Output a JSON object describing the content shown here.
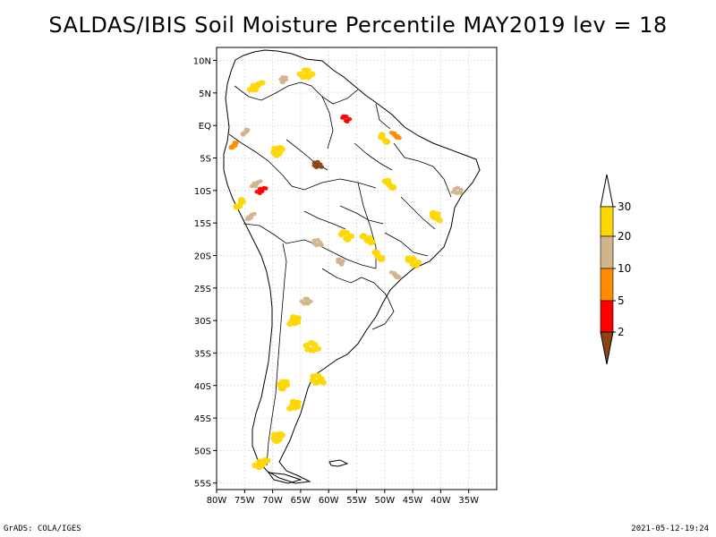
{
  "title": "SALDAS/IBIS Soil Moisture Percentile MAY2019 lev = 18",
  "footer": {
    "left": "GrADS: COLA/IGES",
    "right": "2021-05-12-19:24"
  },
  "map": {
    "lon_range": [
      -80,
      -30
    ],
    "lat_range": [
      -56,
      12
    ],
    "x_ticks": [
      {
        "value": -80,
        "label": "80W"
      },
      {
        "value": -75,
        "label": "75W"
      },
      {
        "value": -70,
        "label": "70W"
      },
      {
        "value": -65,
        "label": "65W"
      },
      {
        "value": -60,
        "label": "60W"
      },
      {
        "value": -55,
        "label": "55W"
      },
      {
        "value": -50,
        "label": "50W"
      },
      {
        "value": -45,
        "label": "45W"
      },
      {
        "value": -40,
        "label": "40W"
      },
      {
        "value": -35,
        "label": "35W"
      }
    ],
    "y_ticks": [
      {
        "value": 10,
        "label": "10N"
      },
      {
        "value": 5,
        "label": "5N"
      },
      {
        "value": 0,
        "label": "EQ"
      },
      {
        "value": -5,
        "label": "5S"
      },
      {
        "value": -10,
        "label": "10S"
      },
      {
        "value": -15,
        "label": "15S"
      },
      {
        "value": -20,
        "label": "20S"
      },
      {
        "value": -25,
        "label": "25S"
      },
      {
        "value": -30,
        "label": "30S"
      },
      {
        "value": -35,
        "label": "35S"
      },
      {
        "value": -40,
        "label": "40S"
      },
      {
        "value": -45,
        "label": "45S"
      },
      {
        "value": -50,
        "label": "50S"
      },
      {
        "value": -55,
        "label": "55S"
      }
    ],
    "grid": "dotted"
  },
  "colorbar": {
    "labels": [
      "2",
      "5",
      "10",
      "20",
      "30"
    ],
    "colors": {
      "below_2": "#8b4513",
      "2_5": "#ff0000",
      "5_10": "#ff8c00",
      "10_20": "#d2b48c",
      "20_30": "#ffd700",
      "above_30": "#ffffff"
    }
  },
  "anomaly_regions": [
    {
      "lon": -64,
      "lat": 8,
      "class": "20_30"
    },
    {
      "lon": -68,
      "lat": 7,
      "class": "10_20"
    },
    {
      "lon": -73,
      "lat": 6,
      "class": "20_30"
    },
    {
      "lon": -57,
      "lat": 1,
      "class": "2_5"
    },
    {
      "lon": -50,
      "lat": -2,
      "class": "20_30"
    },
    {
      "lon": -48,
      "lat": -1.5,
      "class": "5_10"
    },
    {
      "lon": -75,
      "lat": -1,
      "class": "10_20"
    },
    {
      "lon": -77,
      "lat": -3,
      "class": "5_10"
    },
    {
      "lon": -69,
      "lat": -4,
      "class": "20_30"
    },
    {
      "lon": -62,
      "lat": -6,
      "class": "below_2"
    },
    {
      "lon": -73,
      "lat": -9,
      "class": "10_20"
    },
    {
      "lon": -72,
      "lat": -10,
      "class": "2_5"
    },
    {
      "lon": -76,
      "lat": -12,
      "class": "20_30"
    },
    {
      "lon": -74,
      "lat": -14,
      "class": "10_20"
    },
    {
      "lon": -49,
      "lat": -9,
      "class": "20_30"
    },
    {
      "lon": -37,
      "lat": -10,
      "class": "10_20"
    },
    {
      "lon": -41,
      "lat": -14,
      "class": "20_30"
    },
    {
      "lon": -57,
      "lat": -17,
      "class": "20_30"
    },
    {
      "lon": -53,
      "lat": -17.5,
      "class": "20_30"
    },
    {
      "lon": -62,
      "lat": -18,
      "class": "10_20"
    },
    {
      "lon": -58,
      "lat": -21,
      "class": "10_20"
    },
    {
      "lon": -51,
      "lat": -20,
      "class": "20_30"
    },
    {
      "lon": -45,
      "lat": -21,
      "class": "20_30"
    },
    {
      "lon": -48,
      "lat": -23,
      "class": "10_20"
    },
    {
      "lon": -64,
      "lat": -27,
      "class": "10_20"
    },
    {
      "lon": -66,
      "lat": -30,
      "class": "20_30"
    },
    {
      "lon": -63,
      "lat": -34,
      "class": "20_30"
    },
    {
      "lon": -62,
      "lat": -39,
      "class": "20_30"
    },
    {
      "lon": -68,
      "lat": -40,
      "class": "20_30"
    },
    {
      "lon": -66,
      "lat": -43,
      "class": "20_30"
    },
    {
      "lon": -69,
      "lat": -48,
      "class": "20_30"
    },
    {
      "lon": -72,
      "lat": -52,
      "class": "20_30"
    }
  ]
}
